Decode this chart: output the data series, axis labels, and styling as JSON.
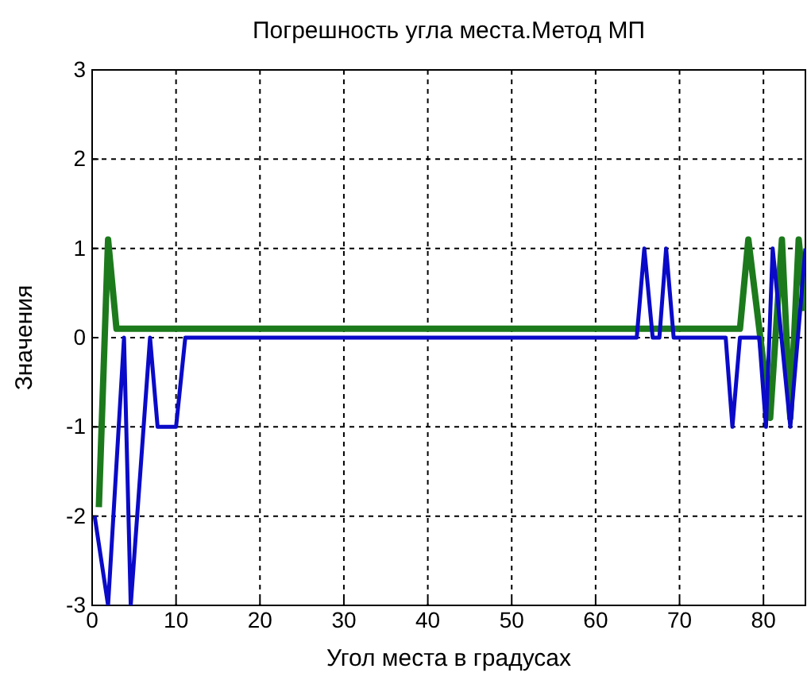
{
  "chart_data": {
    "type": "line",
    "title": "Погрешность угла места.Метод МП",
    "xlabel": "Угол места в градусах",
    "ylabel": "Значения",
    "xlim": [
      0,
      85
    ],
    "ylim": [
      -3,
      3
    ],
    "xticks": [
      0,
      10,
      20,
      30,
      40,
      50,
      60,
      70,
      80
    ],
    "yticks": [
      -3,
      -2,
      -1,
      0,
      1,
      2,
      3
    ],
    "grid": true,
    "line_style": "solid",
    "marker": "none",
    "series": [
      {
        "color": "#1c7a1c",
        "x": [
          0.8,
          1.9,
          2.9,
          77.2,
          78.2,
          80.8,
          82.2,
          83.2,
          84.2,
          85
        ],
        "values": [
          -1.9,
          1.1,
          0.1,
          0.1,
          1.1,
          -0.9,
          1.1,
          -0.9,
          1.1,
          0.3
        ]
      },
      {
        "color": "#0a0ac8",
        "x": [
          0.3,
          1.9,
          3.8,
          4.6,
          6.9,
          7.8,
          10,
          11.1,
          64.9,
          65.8,
          66.8,
          67.6,
          68.4,
          69.3,
          75.5,
          76.3,
          77.2,
          79.5,
          80.3,
          81.1,
          83.2,
          85
        ],
        "values": [
          -2,
          -3,
          0,
          -3,
          0,
          -1,
          -1,
          0,
          0,
          1,
          0,
          0,
          1,
          0,
          0,
          -1,
          0,
          0,
          -1,
          1,
          -1,
          1
        ]
      }
    ]
  }
}
